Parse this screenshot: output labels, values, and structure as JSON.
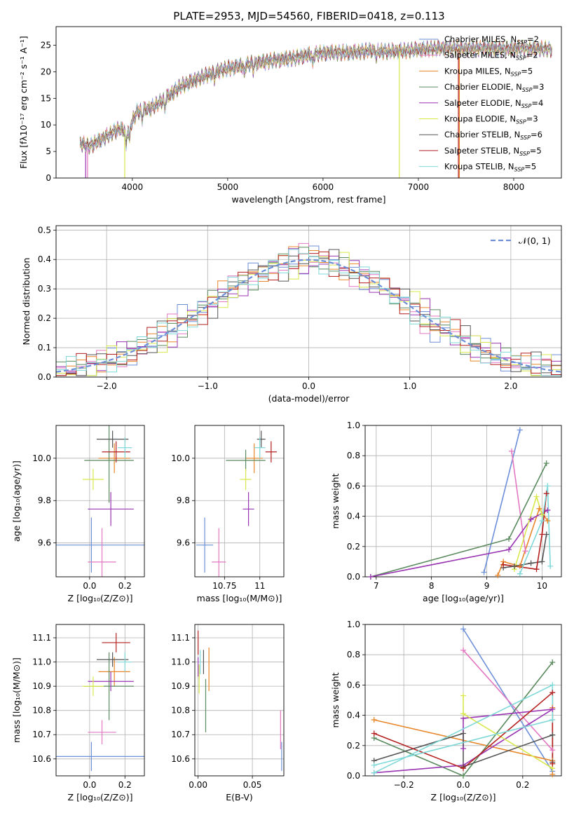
{
  "figure_title": "PLATE=2953, MJD=54560, FIBERID=0418, z=0.113",
  "models": [
    {
      "label": "Chabrier MILES, N_SSP=2",
      "text": "Chabrier MILES, N",
      "sub": "SSP",
      "tail": "=2",
      "color": "#6d8fd8"
    },
    {
      "label": "Salpeter MILES, N_SSP=2",
      "text": "Salpeter MILES, N",
      "sub": "SSP",
      "tail": "=2",
      "color": "#e377c2"
    },
    {
      "label": "Kroupa MILES, N_SSP=5",
      "text": "Kroupa MILES, N",
      "sub": "SSP",
      "tail": "=5",
      "color": "#e8862a"
    },
    {
      "label": "Chabrier ELODIE, N_SSP=3",
      "text": "Chabrier ELODIE, N",
      "sub": "SSP",
      "tail": "=3",
      "color": "#5a8a5e"
    },
    {
      "label": "Salpeter ELODIE, N_SSP=4",
      "text": "Salpeter ELODIE, N",
      "sub": "SSP",
      "tail": "=4",
      "color": "#9a35b3"
    },
    {
      "label": "Kroupa ELODIE, N_SSP=3",
      "text": "Kroupa ELODIE, N",
      "sub": "SSP",
      "tail": "=3",
      "color": "#d8e84c"
    },
    {
      "label": "Chabrier STELIB, N_SSP=6",
      "text": "Chabrier STELIB, N",
      "sub": "SSP",
      "tail": "=6",
      "color": "#555555"
    },
    {
      "label": "Salpeter STELIB, N_SSP=5",
      "text": "Salpeter STELIB, N",
      "sub": "SSP",
      "tail": "=5",
      "color": "#b41f1f"
    },
    {
      "label": "Kroupa STELIB, N_SSP=5",
      "text": "Kroupa STELIB, N",
      "sub": "SSP",
      "tail": "=5",
      "color": "#7fd8d8"
    }
  ],
  "chart_data": [
    {
      "id": "spectrum",
      "type": "line",
      "xlabel": "wavelength [Angstrom, rest frame]",
      "ylabel": "Flux [fλ10⁻¹⁷ erg cm⁻² s⁻¹ A⁻¹]",
      "xlim": [
        3200,
        8500
      ],
      "ylim": [
        0,
        28.5
      ],
      "xticks": [
        4000,
        5000,
        6000,
        7000,
        8000
      ],
      "yticks": [
        0,
        5,
        10,
        15,
        20,
        25
      ],
      "grid": false,
      "legend": "top-right",
      "continuum": [
        [
          3450,
          6.5
        ],
        [
          3550,
          6.0
        ],
        [
          3700,
          7.5
        ],
        [
          3850,
          9.2
        ],
        [
          3950,
          9.0
        ],
        [
          4050,
          12.5
        ],
        [
          4200,
          13.2
        ],
        [
          4350,
          15.0
        ],
        [
          4500,
          17.2
        ],
        [
          4700,
          18.8
        ],
        [
          4900,
          20.2
        ],
        [
          5100,
          21.0
        ],
        [
          5300,
          21.7
        ],
        [
          5500,
          22.2
        ],
        [
          5700,
          22.6
        ],
        [
          5900,
          23.4
        ],
        [
          6100,
          23.6
        ],
        [
          6300,
          23.6
        ],
        [
          6500,
          24.0
        ],
        [
          6700,
          23.8
        ],
        [
          6900,
          24.0
        ],
        [
          7100,
          24.3
        ],
        [
          7300,
          24.5
        ],
        [
          7500,
          24.3
        ],
        [
          7700,
          24.5
        ],
        [
          7900,
          24.3
        ],
        [
          8100,
          24.4
        ],
        [
          8300,
          24.3
        ],
        [
          8400,
          24.3
        ]
      ]
    },
    {
      "id": "residuals",
      "type": "histogram",
      "xlabel": "(data-model)/error",
      "ylabel": "Normed distribution",
      "xlim": [
        -2.5,
        2.5
      ],
      "ylim": [
        0,
        0.515
      ],
      "xticks": [
        -2,
        -1,
        0,
        1,
        2
      ],
      "yticks": [
        0.0,
        0.1,
        0.2,
        0.3,
        0.4,
        0.5
      ],
      "grid": true,
      "legend": "top-right",
      "reference_label": "𝒩(0, 1)",
      "reference_color": "#6d8fd8",
      "bin_width": 0.1
    },
    {
      "id": "age_vs_Z",
      "type": "errorbar",
      "xlabel": "Z [log₁₀(Z/Z⊙)]",
      "ylabel": "age  [log₁₀(age/yr)]",
      "xlim": [
        -0.19,
        0.31
      ],
      "ylim": [
        9.44,
        10.155
      ],
      "xticks": [
        0.0,
        0.2
      ],
      "yticks": [
        9.6,
        9.8,
        10.0
      ],
      "grid": true,
      "points": [
        {
          "model": 0,
          "x": 0.01,
          "y": 9.59,
          "xerr": 0.3,
          "yerr": 0.13
        },
        {
          "model": 1,
          "x": 0.07,
          "y": 9.51,
          "xerr": 0.08,
          "yerr": 0.16
        },
        {
          "model": 2,
          "x": 0.14,
          "y": 10.0,
          "xerr": 0.09,
          "yerr": 0.07
        },
        {
          "model": 3,
          "x": 0.11,
          "y": 9.99,
          "xerr": 0.14,
          "yerr": 0.2
        },
        {
          "model": 4,
          "x": 0.12,
          "y": 9.76,
          "xerr": 0.13,
          "yerr": 0.08
        },
        {
          "model": 5,
          "x": 0.02,
          "y": 9.9,
          "xerr": 0.06,
          "yerr": 0.05
        },
        {
          "model": 6,
          "x": 0.13,
          "y": 10.09,
          "xerr": 0.09,
          "yerr": 0.04
        },
        {
          "model": 7,
          "x": 0.15,
          "y": 10.03,
          "xerr": 0.08,
          "yerr": 0.05
        },
        {
          "model": 8,
          "x": 0.2,
          "y": 10.05,
          "xerr": 0.04,
          "yerr": 0.05
        }
      ]
    },
    {
      "id": "age_vs_mass",
      "type": "errorbar",
      "xlabel": "mass [log₁₀(M/M⊙)]",
      "ylabel": "",
      "xlim": [
        10.54,
        11.17
      ],
      "ylim": [
        9.44,
        10.155
      ],
      "xticks": [
        10.75,
        11.0
      ],
      "yticks": [
        9.6,
        9.8,
        10.0
      ],
      "grid": true,
      "points": [
        {
          "model": 0,
          "x": 10.61,
          "y": 9.59,
          "xerr": 0.06,
          "yerr": 0.13
        },
        {
          "model": 1,
          "x": 10.71,
          "y": 9.51,
          "xerr": 0.05,
          "yerr": 0.16
        },
        {
          "model": 2,
          "x": 10.96,
          "y": 10.0,
          "xerr": 0.06,
          "yerr": 0.07
        },
        {
          "model": 3,
          "x": 10.9,
          "y": 9.99,
          "xerr": 0.14,
          "yerr": 0.05
        },
        {
          "model": 4,
          "x": 10.92,
          "y": 9.76,
          "xerr": 0.04,
          "yerr": 0.08
        },
        {
          "model": 5,
          "x": 10.9,
          "y": 9.9,
          "xerr": 0.04,
          "yerr": 0.05
        },
        {
          "model": 6,
          "x": 11.01,
          "y": 10.09,
          "xerr": 0.03,
          "yerr": 0.04
        },
        {
          "model": 7,
          "x": 11.08,
          "y": 10.03,
          "xerr": 0.04,
          "yerr": 0.05
        },
        {
          "model": 8,
          "x": 11.0,
          "y": 10.05,
          "xerr": 0.04,
          "yerr": 0.05
        }
      ]
    },
    {
      "id": "weight_vs_age",
      "type": "line",
      "xlabel": "age  [log₁₀(age/yr)]",
      "ylabel": "mass weight",
      "xlim": [
        6.8,
        10.35
      ],
      "ylim": [
        0,
        1.0
      ],
      "xticks": [
        7,
        8,
        9,
        10
      ],
      "yticks": [
        0.0,
        0.2,
        0.4,
        0.6,
        0.8,
        1.0
      ],
      "grid": true,
      "series": [
        {
          "model": 0,
          "points": [
            [
              8.95,
              0.03
            ],
            [
              9.6,
              0.97
            ]
          ]
        },
        {
          "model": 1,
          "points": [
            [
              9.45,
              0.83
            ],
            [
              9.7,
              0.17
            ]
          ]
        },
        {
          "model": 2,
          "points": [
            [
              9.2,
              0.01
            ],
            [
              9.3,
              0.1
            ],
            [
              9.6,
              0.07
            ],
            [
              9.95,
              0.45
            ],
            [
              10.1,
              0.37
            ]
          ]
        },
        {
          "model": 3,
          "points": [
            [
              6.9,
              0.0
            ],
            [
              9.4,
              0.25
            ],
            [
              10.08,
              0.75
            ]
          ]
        },
        {
          "model": 4,
          "points": [
            [
              6.9,
              0.0
            ],
            [
              9.4,
              0.18
            ],
            [
              9.8,
              0.38
            ],
            [
              10.1,
              0.44
            ]
          ]
        },
        {
          "model": 5,
          "points": [
            [
              9.5,
              0.05
            ],
            [
              9.9,
              0.53
            ],
            [
              10.0,
              0.41
            ]
          ]
        },
        {
          "model": 6,
          "points": [
            [
              9.3,
              0.06
            ],
            [
              9.5,
              0.07
            ],
            [
              9.8,
              0.09
            ],
            [
              10.0,
              0.1
            ],
            [
              10.08,
              0.28
            ]
          ]
        },
        {
          "model": 7,
          "points": [
            [
              9.3,
              0.08
            ],
            [
              9.9,
              0.05
            ],
            [
              10.0,
              0.28
            ],
            [
              10.08,
              0.55
            ]
          ]
        },
        {
          "model": 8,
          "points": [
            [
              9.6,
              0.02
            ],
            [
              10.0,
              0.37
            ],
            [
              10.1,
              0.6
            ],
            [
              10.15,
              0.07
            ]
          ]
        }
      ]
    },
    {
      "id": "mass_vs_Z",
      "type": "errorbar",
      "xlabel": "Z [log₁₀(Z/Z⊙)]",
      "ylabel": "mass [log₁₀(M/M⊙)]",
      "xlim": [
        -0.19,
        0.31
      ],
      "ylim": [
        10.53,
        11.155
      ],
      "xticks": [
        0.0,
        0.2
      ],
      "yticks": [
        10.6,
        10.7,
        10.8,
        10.9,
        11.0,
        11.1
      ],
      "grid": true,
      "points": [
        {
          "model": 0,
          "x": 0.01,
          "y": 10.61,
          "xerr": 0.3,
          "yerr": 0.06
        },
        {
          "model": 1,
          "x": 0.07,
          "y": 10.71,
          "xerr": 0.08,
          "yerr": 0.05
        },
        {
          "model": 2,
          "x": 0.14,
          "y": 10.96,
          "xerr": 0.09,
          "yerr": 0.06
        },
        {
          "model": 3,
          "x": 0.11,
          "y": 10.9,
          "xerr": 0.14,
          "yerr": 0.14
        },
        {
          "model": 4,
          "x": 0.12,
          "y": 10.92,
          "xerr": 0.13,
          "yerr": 0.04
        },
        {
          "model": 5,
          "x": 0.02,
          "y": 10.9,
          "xerr": 0.06,
          "yerr": 0.04
        },
        {
          "model": 6,
          "x": 0.13,
          "y": 11.01,
          "xerr": 0.09,
          "yerr": 0.03
        },
        {
          "model": 7,
          "x": 0.15,
          "y": 11.08,
          "xerr": 0.08,
          "yerr": 0.04
        },
        {
          "model": 8,
          "x": 0.2,
          "y": 11.0,
          "xerr": 0.04,
          "yerr": 0.04
        }
      ]
    },
    {
      "id": "mass_vs_EBV",
      "type": "errorbar",
      "xlabel": "E(B-V)",
      "ylabel": "",
      "xlim": [
        -0.003,
        0.079
      ],
      "ylim": [
        10.53,
        11.155
      ],
      "xticks": [
        0.0,
        0.05
      ],
      "xticklabels": [
        "0.00",
        "0.05"
      ],
      "yticks": [
        10.6,
        10.7,
        10.8,
        10.9,
        11.0,
        11.1
      ],
      "grid": true,
      "points": [
        {
          "model": 0,
          "x": 0.077,
          "y": 10.61,
          "xerr": 0,
          "yerr": 0.06
        },
        {
          "model": 1,
          "x": 0.076,
          "y": 10.72,
          "xerr": 0,
          "yerr": 0.08
        },
        {
          "model": 2,
          "x": 0.01,
          "y": 10.97,
          "xerr": 0,
          "yerr": 0.09
        },
        {
          "model": 3,
          "x": 0.007,
          "y": 10.82,
          "xerr": 0,
          "yerr": 0.11
        },
        {
          "model": 4,
          "x": 0.0,
          "y": 10.98,
          "xerr": 0,
          "yerr": 0.04
        },
        {
          "model": 5,
          "x": 0.001,
          "y": 10.93,
          "xerr": 0,
          "yerr": 0.06
        },
        {
          "model": 6,
          "x": 0.005,
          "y": 11.0,
          "xerr": 0,
          "yerr": 0.05
        },
        {
          "model": 7,
          "x": 0.0,
          "y": 11.08,
          "xerr": 0,
          "yerr": 0.05
        },
        {
          "model": 8,
          "x": 0.002,
          "y": 11.0,
          "xerr": 0,
          "yerr": 0.05
        }
      ]
    },
    {
      "id": "weight_vs_Z",
      "type": "line",
      "xlabel": "Z [log₁₀(Z/Z⊙)]",
      "ylabel": "mass weight",
      "xlim": [
        -0.33,
        0.33
      ],
      "ylim": [
        0,
        1.0
      ],
      "xticks": [
        -0.2,
        0.0,
        0.2
      ],
      "xticklabels": [
        "−0.2",
        "0.0",
        "0.2"
      ],
      "yticks": [
        0.0,
        0.2,
        0.4,
        0.6,
        0.8,
        1.0
      ],
      "grid": true,
      "series": [
        {
          "model": 0,
          "points": [
            [
              0.0,
              0.97
            ],
            [
              0.3,
              0.03
            ]
          ]
        },
        {
          "model": 1,
          "points": [
            [
              0.0,
              0.83
            ],
            [
              0.3,
              0.17
            ]
          ]
        },
        {
          "model": 2,
          "points": [
            [
              -0.3,
              0.37
            ],
            [
              0.3,
              0.1
            ],
            [
              0.3,
              0.45
            ],
            [
              0.3,
              0.01
            ]
          ]
        },
        {
          "model": 3,
          "points": [
            [
              -0.3,
              0.25
            ],
            [
              0.0,
              0.0
            ],
            [
              0.3,
              0.75
            ]
          ]
        },
        {
          "model": 4,
          "points": [
            [
              -0.3,
              0.02
            ],
            [
              0.0,
              0.07
            ],
            [
              0.3,
              0.44
            ],
            [
              0.0,
              0.38
            ],
            [
              0.0,
              0.18
            ]
          ]
        },
        {
          "model": 5,
          "points": [
            [
              0.0,
              0.53
            ],
            [
              0.0,
              0.41
            ],
            [
              0.3,
              0.05
            ]
          ]
        },
        {
          "model": 6,
          "points": [
            [
              -0.3,
              0.1
            ],
            [
              0.0,
              0.28
            ],
            [
              0.0,
              0.06
            ],
            [
              0.3,
              0.27
            ],
            [
              0.3,
              0.09
            ]
          ]
        },
        {
          "model": 7,
          "points": [
            [
              -0.3,
              0.28
            ],
            [
              0.0,
              0.05
            ],
            [
              0.3,
              0.55
            ],
            [
              0.3,
              0.08
            ]
          ]
        },
        {
          "model": 8,
          "points": [
            [
              -0.3,
              0.02
            ],
            [
              0.3,
              0.6
            ],
            [
              0.3,
              0.37
            ],
            [
              -0.3,
              0.07
            ]
          ]
        }
      ]
    }
  ]
}
